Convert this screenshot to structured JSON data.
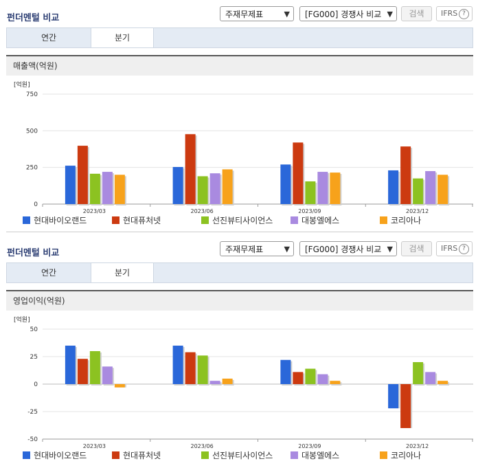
{
  "sections": [
    {
      "title": "펀더멘털 비교",
      "select_statement": "주재무제표",
      "select_compare": "[FG000] 경쟁사 비교",
      "search_label": "검색",
      "ifrs_label": "IFRS",
      "ifrs_help": "?",
      "tabs": [
        {
          "label": "연간",
          "active": false
        },
        {
          "label": "분기",
          "active": true
        }
      ],
      "chart_header": "매출액(억원)"
    },
    {
      "title": "펀더멘털 비교",
      "select_statement": "주재무제표",
      "select_compare": "[FG000] 경쟁사 비교",
      "search_label": "검색",
      "ifrs_label": "IFRS",
      "ifrs_help": "?",
      "tabs": [
        {
          "label": "연간",
          "active": false
        },
        {
          "label": "분기",
          "active": true
        }
      ],
      "chart_header": "영업이익(억원)"
    }
  ],
  "colors": {
    "현대바이오랜드": "#2a67d9",
    "현대퓨처넷": "#cc3a10",
    "선진뷰티사이언스": "#8cc221",
    "대봉엘에스": "#a98ae0",
    "코리아나": "#f7a21b"
  },
  "chart_data": [
    {
      "type": "bar",
      "title": "매출액(억원)",
      "unit_label": "[억원]",
      "categories": [
        "2023/03",
        "2023/06",
        "2023/09",
        "2023/12"
      ],
      "ylim": [
        0,
        750
      ],
      "yticks": [
        "750",
        "500",
        "250",
        "0"
      ],
      "ytick_values": [
        750,
        500,
        250,
        0
      ],
      "grid": true,
      "legend_position": "bottom",
      "series": [
        {
          "name": "현대바이오랜드",
          "values": [
            262,
            253,
            270,
            230
          ]
        },
        {
          "name": "현대퓨처넷",
          "values": [
            398,
            477,
            420,
            393
          ]
        },
        {
          "name": "선진뷰티사이언스",
          "values": [
            207,
            190,
            155,
            175
          ]
        },
        {
          "name": "대봉엘에스",
          "values": [
            220,
            210,
            220,
            225
          ]
        },
        {
          "name": "코리아나",
          "values": [
            200,
            237,
            215,
            200
          ]
        }
      ]
    },
    {
      "type": "bar",
      "title": "영업이익(억원)",
      "unit_label": "[억원]",
      "categories": [
        "2023/03",
        "2023/06",
        "2023/09",
        "2023/12"
      ],
      "ylim": [
        -50,
        50
      ],
      "yticks": [
        "50",
        "25",
        "0",
        "-25",
        "-50"
      ],
      "ytick_values": [
        50,
        25,
        0,
        -25,
        -50
      ],
      "grid": true,
      "legend_position": "bottom",
      "series": [
        {
          "name": "현대바이오랜드",
          "values": [
            35,
            35,
            22,
            -22
          ]
        },
        {
          "name": "현대퓨처넷",
          "values": [
            23,
            29,
            11,
            -40
          ]
        },
        {
          "name": "선진뷰티사이언스",
          "values": [
            30,
            26,
            14,
            20
          ]
        },
        {
          "name": "대봉엘에스",
          "values": [
            16,
            3,
            9,
            11
          ]
        },
        {
          "name": "코리아나",
          "values": [
            -3,
            5,
            3,
            3
          ]
        }
      ]
    }
  ]
}
